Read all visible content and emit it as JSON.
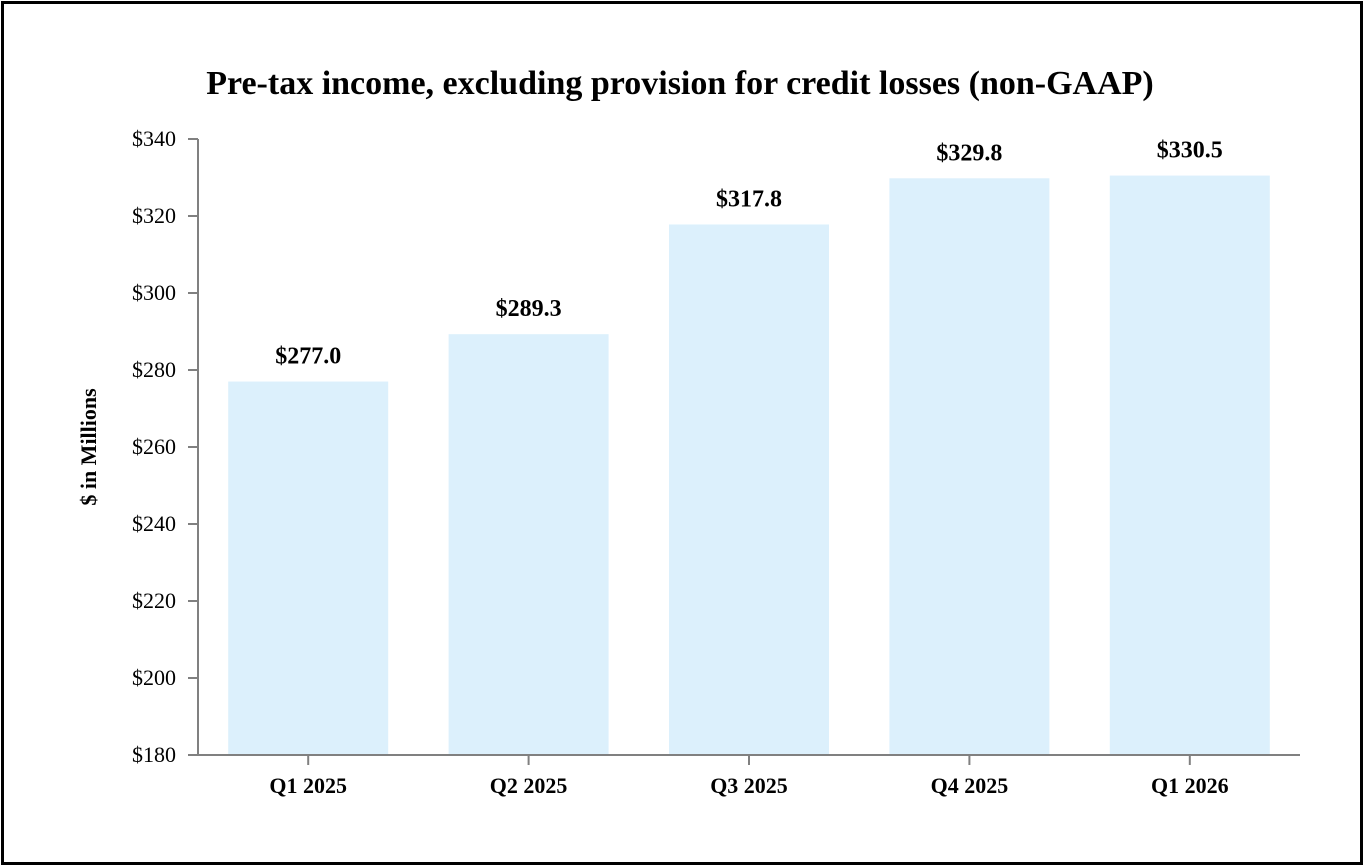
{
  "chart_data": {
    "type": "bar",
    "title": "Pre-tax income, excluding provision for credit losses (non-GAAP)",
    "xlabel": "",
    "ylabel": "$ in Millions",
    "categories": [
      "Q1 2025",
      "Q2 2025",
      "Q3 2025",
      "Q4 2025",
      "Q1 2026"
    ],
    "values": [
      277.0,
      289.3,
      317.8,
      329.8,
      330.5
    ],
    "data_labels": [
      "$277.0",
      "$289.3",
      "$317.8",
      "$329.8",
      "$330.5"
    ],
    "ylim": [
      180,
      340
    ],
    "yticks": [
      180,
      200,
      220,
      240,
      260,
      280,
      300,
      320,
      340
    ],
    "ytick_labels": [
      "$180",
      "$200",
      "$220",
      "$240",
      "$260",
      "$280",
      "$300",
      "$320",
      "$340"
    ],
    "grid": false,
    "legend": "none",
    "bar_color": "#dcf0fc",
    "axis_color": "#808080"
  }
}
